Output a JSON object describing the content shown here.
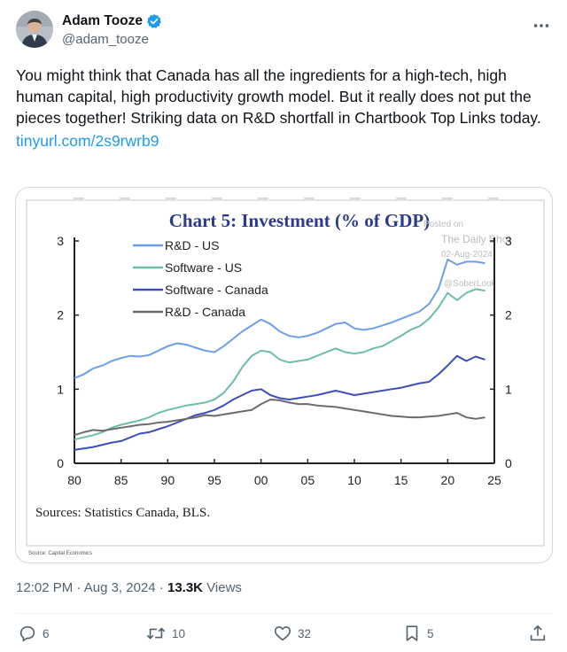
{
  "author": {
    "display_name": "Adam Tooze",
    "handle": "@adam_tooze",
    "verified_icon": "verified-badge-icon",
    "verified_color": "#1d9bf0"
  },
  "tweet": {
    "text": "You might think that Canada has all the ingredients for a high-tech, high human capital, high productivity growth model. But it really does not put the pieces together! Striking data on R&D shortfall in Chartbook Top Links today.",
    "link": "tinyurl.com/2s9rwrb9",
    "link_color": "#1d9bf0"
  },
  "meta": {
    "time": "12:02 PM",
    "separator": "·",
    "date": "Aug 3, 2024",
    "views_count": "13.3K",
    "views_label": "Views"
  },
  "actions": {
    "replies": "6",
    "reposts": "10",
    "likes": "32",
    "bookmarks": "5"
  },
  "chart_data": {
    "type": "line",
    "title": "Chart 5: Investment (% of GDP)",
    "source_note": "Sources: Statistics Canada, BLS.",
    "footer_note": "Source: Capital Economics",
    "watermark": [
      "Posted on",
      "The Daily Shot",
      "02-Aug-2024",
      "@SoberLook"
    ],
    "xlim": [
      1980,
      2025
    ],
    "ylim": [
      0,
      3
    ],
    "x_ticks": [
      "80",
      "85",
      "90",
      "95",
      "00",
      "05",
      "10",
      "15",
      "20",
      "25"
    ],
    "y_ticks": [
      "0",
      "1",
      "2",
      "3"
    ],
    "legend_position": "top-left",
    "series": [
      {
        "name": "R&D - US",
        "color": "#6d9eeb",
        "points": [
          [
            1980,
            1.15
          ],
          [
            1981,
            1.2
          ],
          [
            1982,
            1.28
          ],
          [
            1983,
            1.32
          ],
          [
            1984,
            1.38
          ],
          [
            1985,
            1.42
          ],
          [
            1986,
            1.45
          ],
          [
            1987,
            1.44
          ],
          [
            1988,
            1.46
          ],
          [
            1989,
            1.52
          ],
          [
            1990,
            1.58
          ],
          [
            1991,
            1.62
          ],
          [
            1992,
            1.6
          ],
          [
            1993,
            1.56
          ],
          [
            1994,
            1.52
          ],
          [
            1995,
            1.5
          ],
          [
            1996,
            1.58
          ],
          [
            1997,
            1.68
          ],
          [
            1998,
            1.78
          ],
          [
            1999,
            1.86
          ],
          [
            2000,
            1.94
          ],
          [
            2001,
            1.88
          ],
          [
            2002,
            1.78
          ],
          [
            2003,
            1.72
          ],
          [
            2004,
            1.7
          ],
          [
            2005,
            1.72
          ],
          [
            2006,
            1.76
          ],
          [
            2007,
            1.82
          ],
          [
            2008,
            1.88
          ],
          [
            2009,
            1.9
          ],
          [
            2010,
            1.82
          ],
          [
            2011,
            1.8
          ],
          [
            2012,
            1.82
          ],
          [
            2013,
            1.86
          ],
          [
            2014,
            1.9
          ],
          [
            2015,
            1.95
          ],
          [
            2016,
            2.0
          ],
          [
            2017,
            2.05
          ],
          [
            2018,
            2.15
          ],
          [
            2019,
            2.35
          ],
          [
            2020,
            2.75
          ],
          [
            2021,
            2.68
          ],
          [
            2022,
            2.72
          ],
          [
            2023,
            2.72
          ],
          [
            2024,
            2.7
          ]
        ]
      },
      {
        "name": "Software - US",
        "color": "#6cbf9f",
        "points": [
          [
            1980,
            0.32
          ],
          [
            1981,
            0.35
          ],
          [
            1982,
            0.38
          ],
          [
            1983,
            0.42
          ],
          [
            1984,
            0.48
          ],
          [
            1985,
            0.52
          ],
          [
            1986,
            0.55
          ],
          [
            1987,
            0.58
          ],
          [
            1988,
            0.62
          ],
          [
            1989,
            0.68
          ],
          [
            1990,
            0.72
          ],
          [
            1991,
            0.75
          ],
          [
            1992,
            0.78
          ],
          [
            1993,
            0.8
          ],
          [
            1994,
            0.82
          ],
          [
            1995,
            0.86
          ],
          [
            1996,
            0.95
          ],
          [
            1997,
            1.1
          ],
          [
            1998,
            1.3
          ],
          [
            1999,
            1.45
          ],
          [
            2000,
            1.52
          ],
          [
            2001,
            1.5
          ],
          [
            2002,
            1.4
          ],
          [
            2003,
            1.36
          ],
          [
            2004,
            1.38
          ],
          [
            2005,
            1.4
          ],
          [
            2006,
            1.45
          ],
          [
            2007,
            1.5
          ],
          [
            2008,
            1.55
          ],
          [
            2009,
            1.5
          ],
          [
            2010,
            1.48
          ],
          [
            2011,
            1.5
          ],
          [
            2012,
            1.55
          ],
          [
            2013,
            1.58
          ],
          [
            2014,
            1.65
          ],
          [
            2015,
            1.72
          ],
          [
            2016,
            1.8
          ],
          [
            2017,
            1.85
          ],
          [
            2018,
            1.95
          ],
          [
            2019,
            2.1
          ],
          [
            2020,
            2.3
          ],
          [
            2021,
            2.2
          ],
          [
            2022,
            2.3
          ],
          [
            2023,
            2.35
          ],
          [
            2024,
            2.33
          ]
        ]
      },
      {
        "name": "Software - Canada",
        "color": "#3b4fb8",
        "points": [
          [
            1980,
            0.18
          ],
          [
            1981,
            0.2
          ],
          [
            1982,
            0.22
          ],
          [
            1983,
            0.25
          ],
          [
            1984,
            0.28
          ],
          [
            1985,
            0.3
          ],
          [
            1986,
            0.35
          ],
          [
            1987,
            0.4
          ],
          [
            1988,
            0.42
          ],
          [
            1989,
            0.46
          ],
          [
            1990,
            0.5
          ],
          [
            1991,
            0.55
          ],
          [
            1992,
            0.6
          ],
          [
            1993,
            0.65
          ],
          [
            1994,
            0.68
          ],
          [
            1995,
            0.72
          ],
          [
            1996,
            0.78
          ],
          [
            1997,
            0.86
          ],
          [
            1998,
            0.92
          ],
          [
            1999,
            0.98
          ],
          [
            2000,
            1.0
          ],
          [
            2001,
            0.92
          ],
          [
            2002,
            0.88
          ],
          [
            2003,
            0.86
          ],
          [
            2004,
            0.88
          ],
          [
            2005,
            0.9
          ],
          [
            2006,
            0.92
          ],
          [
            2007,
            0.95
          ],
          [
            2008,
            0.98
          ],
          [
            2009,
            0.95
          ],
          [
            2010,
            0.92
          ],
          [
            2011,
            0.94
          ],
          [
            2012,
            0.96
          ],
          [
            2013,
            0.98
          ],
          [
            2014,
            1.0
          ],
          [
            2015,
            1.02
          ],
          [
            2016,
            1.05
          ],
          [
            2017,
            1.08
          ],
          [
            2018,
            1.1
          ],
          [
            2019,
            1.2
          ],
          [
            2020,
            1.32
          ],
          [
            2021,
            1.45
          ],
          [
            2022,
            1.38
          ],
          [
            2023,
            1.44
          ],
          [
            2024,
            1.4
          ]
        ]
      },
      {
        "name": "R&D - Canada",
        "color": "#6b6b6b",
        "points": [
          [
            1980,
            0.38
          ],
          [
            1981,
            0.42
          ],
          [
            1982,
            0.45
          ],
          [
            1983,
            0.44
          ],
          [
            1984,
            0.46
          ],
          [
            1985,
            0.48
          ],
          [
            1986,
            0.5
          ],
          [
            1987,
            0.52
          ],
          [
            1988,
            0.53
          ],
          [
            1989,
            0.55
          ],
          [
            1990,
            0.56
          ],
          [
            1991,
            0.58
          ],
          [
            1992,
            0.6
          ],
          [
            1993,
            0.62
          ],
          [
            1994,
            0.65
          ],
          [
            1995,
            0.64
          ],
          [
            1996,
            0.66
          ],
          [
            1997,
            0.68
          ],
          [
            1998,
            0.7
          ],
          [
            1999,
            0.72
          ],
          [
            2000,
            0.8
          ],
          [
            2001,
            0.86
          ],
          [
            2002,
            0.85
          ],
          [
            2003,
            0.82
          ],
          [
            2004,
            0.8
          ],
          [
            2005,
            0.8
          ],
          [
            2006,
            0.78
          ],
          [
            2007,
            0.77
          ],
          [
            2008,
            0.76
          ],
          [
            2009,
            0.74
          ],
          [
            2010,
            0.72
          ],
          [
            2011,
            0.7
          ],
          [
            2012,
            0.68
          ],
          [
            2013,
            0.66
          ],
          [
            2014,
            0.64
          ],
          [
            2015,
            0.63
          ],
          [
            2016,
            0.62
          ],
          [
            2017,
            0.62
          ],
          [
            2018,
            0.63
          ],
          [
            2019,
            0.64
          ],
          [
            2020,
            0.66
          ],
          [
            2021,
            0.68
          ],
          [
            2022,
            0.62
          ],
          [
            2023,
            0.6
          ],
          [
            2024,
            0.62
          ]
        ]
      }
    ]
  }
}
